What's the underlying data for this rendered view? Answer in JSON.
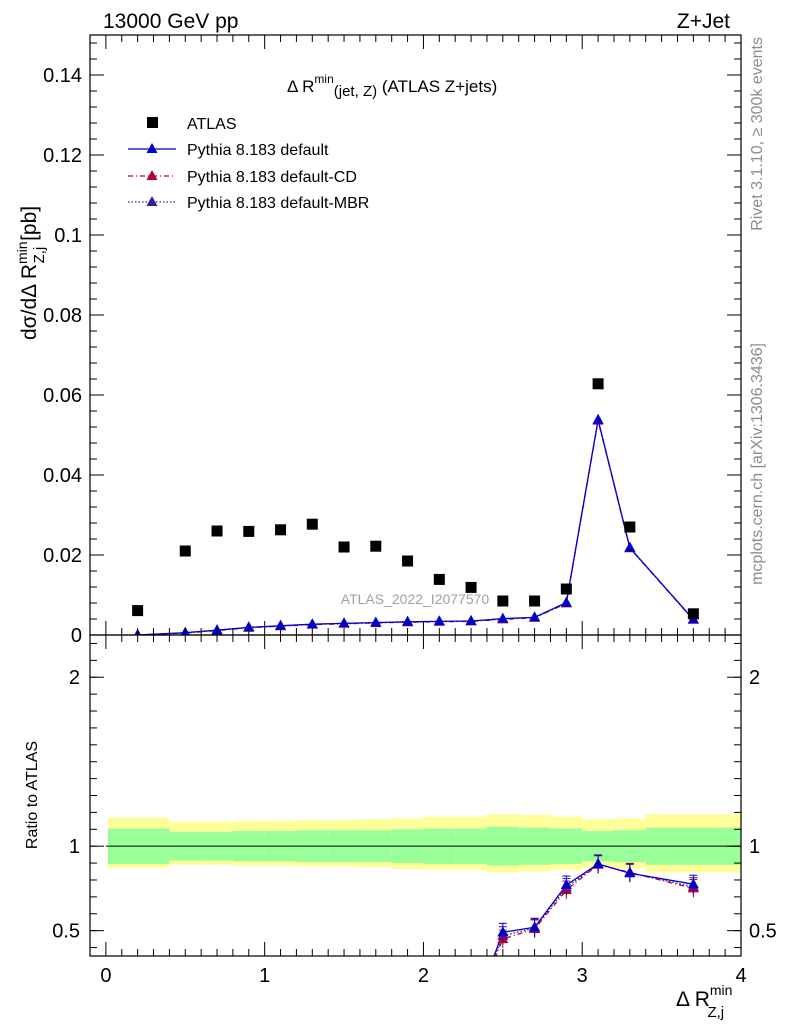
{
  "header": {
    "left": "13000 GeV pp",
    "right": "Z+Jet"
  },
  "side": {
    "rivet": "Rivet 3.1.10, ≥ 300k events",
    "mcplots": "mcplots.cern.ch [arXiv:1306.3436]"
  },
  "watermark": "ATLAS_2022_I2077570",
  "colors": {
    "data": "#000000",
    "default": "#0000cc",
    "cd": "#b0003a",
    "mbr": "#3a1aa0",
    "band_inner": "#99ff99",
    "band_outer": "#ffff99"
  },
  "chart_data": [
    {
      "type": "scatter",
      "title_main": "Δ R",
      "title_sup": "min",
      "title_sub": "(jet, Z)",
      "title_tail": " (ATLAS Z+jets)",
      "ylabel_pre": "dσ/dΔ R",
      "ylabel_sup": "min",
      "ylabel_sub": "Z,j",
      "ylabel_post": " [pb]",
      "xlim": [
        -0.1,
        4.0
      ],
      "ylim": [
        0,
        0.15
      ],
      "yticks": [
        0,
        0.02,
        0.04,
        0.06,
        0.08,
        0.1,
        0.12,
        0.14
      ],
      "ytick_labels": [
        "0",
        "0.02",
        "0.04",
        "0.06",
        "0.08",
        "0.1",
        "0.12",
        "0.14"
      ],
      "legend": [
        {
          "name": "ATLAS",
          "style": "data"
        },
        {
          "name": "Pythia 8.183 default",
          "style": "default"
        },
        {
          "name": "Pythia 8.183 default-CD",
          "style": "cd"
        },
        {
          "name": "Pythia 8.183 default-MBR",
          "style": "mbr"
        }
      ],
      "x": [
        0.2,
        0.5,
        0.7,
        0.9,
        1.1,
        1.3,
        1.5,
        1.7,
        1.9,
        2.1,
        2.3,
        2.5,
        2.7,
        2.9,
        3.1,
        3.3,
        3.7
      ],
      "series": [
        {
          "name": "ATLAS",
          "values": [
            0.0061,
            0.021,
            0.026,
            0.0259,
            0.0263,
            0.0277,
            0.022,
            0.0222,
            0.0185,
            0.0139,
            0.0119,
            0.0085,
            0.0085,
            0.0115,
            0.0628,
            0.027,
            0.0053
          ]
        },
        {
          "name": "Pythia 8.183 default",
          "values": [
            0.0,
            0.0006,
            0.0012,
            0.0019,
            0.0023,
            0.0027,
            0.0029,
            0.0031,
            0.0033,
            0.0034,
            0.0035,
            0.0041,
            0.0044,
            0.0081,
            0.0538,
            0.0218,
            0.0039
          ]
        },
        {
          "name": "Pythia 8.183 default-CD",
          "values": [
            0.0,
            0.0005,
            0.0011,
            0.0018,
            0.0022,
            0.0026,
            0.0028,
            0.003,
            0.0032,
            0.0033,
            0.0034,
            0.0039,
            0.0043,
            0.0079,
            0.0536,
            0.0217,
            0.0038
          ]
        },
        {
          "name": "Pythia 8.183 default-MBR",
          "values": [
            0.0,
            0.0005,
            0.0012,
            0.0019,
            0.0023,
            0.0027,
            0.0029,
            0.0031,
            0.0033,
            0.0034,
            0.0035,
            0.004,
            0.0044,
            0.008,
            0.0537,
            0.0218,
            0.0039
          ]
        }
      ]
    },
    {
      "type": "line",
      "ylabel": "Ratio to ATLAS",
      "xlabel_main": "Δ R",
      "xlabel_sup": "min",
      "xlabel_sub": "Z,j",
      "xlim": [
        -0.1,
        4.0
      ],
      "ylim": [
        0.35,
        2.25
      ],
      "xticks": [
        0,
        1,
        2,
        3,
        4
      ],
      "xtick_labels": [
        "0",
        "1",
        "2",
        "3",
        "4"
      ],
      "yticks": [
        0.5,
        1,
        2
      ],
      "ytick_labels": [
        "0.5",
        "1",
        "2"
      ],
      "bins": [
        [
          0.0,
          0.4
        ],
        [
          0.4,
          0.6
        ],
        [
          0.6,
          0.8
        ],
        [
          0.8,
          1.0
        ],
        [
          1.0,
          1.2
        ],
        [
          1.2,
          1.4
        ],
        [
          1.4,
          1.6
        ],
        [
          1.6,
          1.8
        ],
        [
          1.8,
          2.0
        ],
        [
          2.0,
          2.2
        ],
        [
          2.2,
          2.4
        ],
        [
          2.4,
          2.6
        ],
        [
          2.6,
          2.8
        ],
        [
          2.8,
          3.0
        ],
        [
          3.0,
          3.2
        ],
        [
          3.2,
          3.4
        ],
        [
          3.4,
          4.0
        ]
      ],
      "band_inner": [
        [
          0.895,
          1.105
        ],
        [
          0.915,
          1.085
        ],
        [
          0.915,
          1.085
        ],
        [
          0.91,
          1.09
        ],
        [
          0.91,
          1.09
        ],
        [
          0.905,
          1.095
        ],
        [
          0.905,
          1.095
        ],
        [
          0.905,
          1.095
        ],
        [
          0.9,
          1.1
        ],
        [
          0.895,
          1.105
        ],
        [
          0.895,
          1.105
        ],
        [
          0.885,
          1.115
        ],
        [
          0.89,
          1.11
        ],
        [
          0.895,
          1.105
        ],
        [
          0.91,
          1.09
        ],
        [
          0.905,
          1.095
        ],
        [
          0.89,
          1.11
        ]
      ],
      "band_outer": [
        [
          0.87,
          1.17
        ],
        [
          0.89,
          1.145
        ],
        [
          0.89,
          1.145
        ],
        [
          0.885,
          1.15
        ],
        [
          0.885,
          1.15
        ],
        [
          0.88,
          1.155
        ],
        [
          0.88,
          1.155
        ],
        [
          0.875,
          1.16
        ],
        [
          0.865,
          1.165
        ],
        [
          0.86,
          1.175
        ],
        [
          0.86,
          1.175
        ],
        [
          0.845,
          1.19
        ],
        [
          0.85,
          1.185
        ],
        [
          0.86,
          1.175
        ],
        [
          0.875,
          1.16
        ],
        [
          0.87,
          1.165
        ],
        [
          0.845,
          1.19
        ]
      ],
      "x": [
        2.5,
        2.7,
        2.9,
        3.1,
        3.3,
        3.7
      ],
      "series": [
        {
          "name": "Pythia 8.183 default",
          "values": [
            0.49,
            0.52,
            0.77,
            0.895,
            0.84,
            0.775
          ],
          "entry_x": 2.44
        },
        {
          "name": "Pythia 8.183 default-CD",
          "values": [
            0.45,
            0.51,
            0.74,
            0.89,
            0.845,
            0.75
          ],
          "entry_x": 2.45
        },
        {
          "name": "Pythia 8.183 default-MBR",
          "values": [
            0.47,
            0.515,
            0.755,
            0.893,
            0.842,
            0.76
          ],
          "entry_x": 2.445
        }
      ]
    }
  ]
}
